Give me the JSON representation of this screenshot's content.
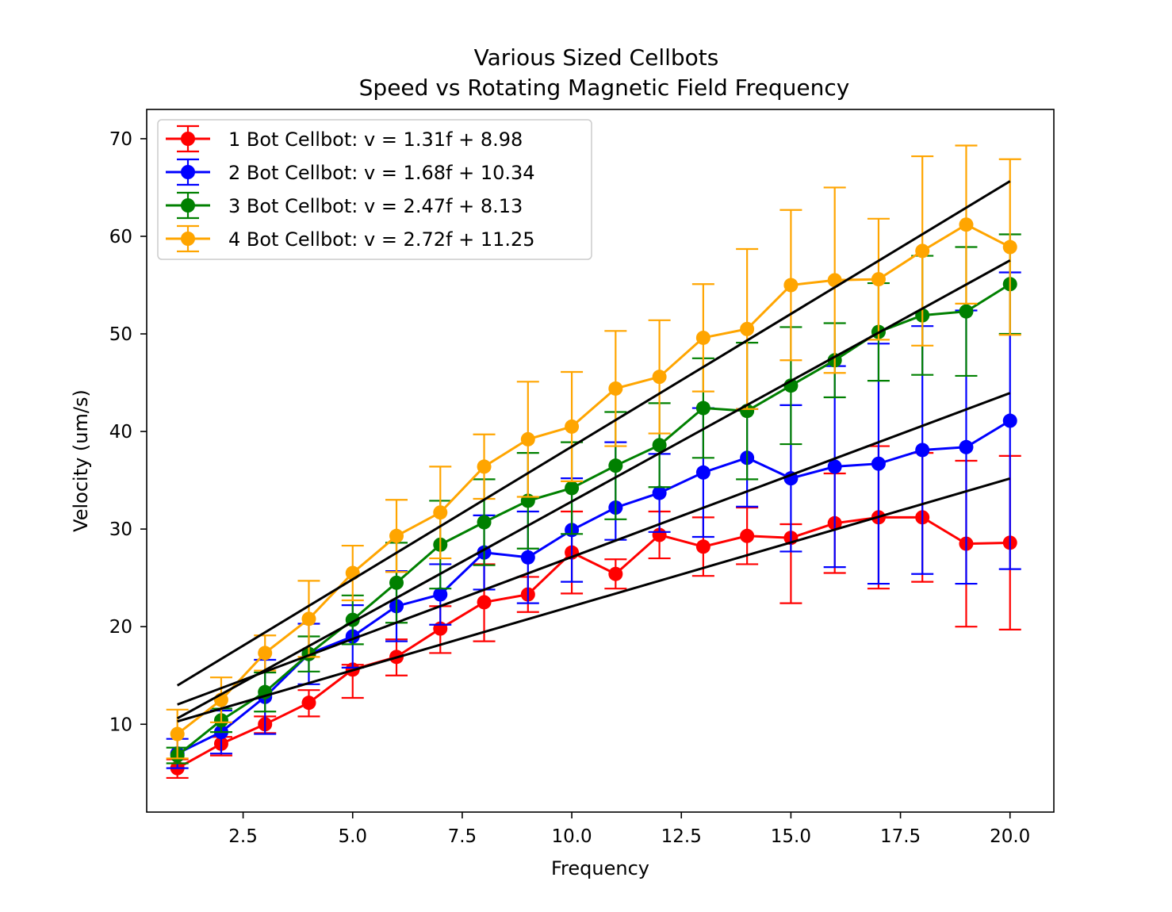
{
  "chart_data": {
    "type": "line",
    "title_line1": "Various Sized Cellbots",
    "title_line2": "Speed vs Rotating Magnetic Field Frequency",
    "xlabel": "Frequency",
    "ylabel": "Velocity (um/s)",
    "xlim": [
      0.3,
      21.0
    ],
    "ylim": [
      1.0,
      73.0
    ],
    "xticks": [
      2.5,
      5.0,
      7.5,
      10.0,
      12.5,
      15.0,
      17.5,
      20.0
    ],
    "xtick_labels": [
      "2.5",
      "5.0",
      "7.5",
      "10.0",
      "12.5",
      "15.0",
      "17.5",
      "20.0"
    ],
    "yticks": [
      10,
      20,
      30,
      40,
      50,
      60,
      70
    ],
    "ytick_labels": [
      "10",
      "20",
      "30",
      "40",
      "50",
      "60",
      "70"
    ],
    "grid": false,
    "legend_position": "top-left",
    "fit_line_color": "#000000",
    "x": [
      1,
      2,
      3,
      4,
      5,
      6,
      7,
      8,
      9,
      10,
      11,
      12,
      13,
      14,
      15,
      16,
      17,
      18,
      19,
      20
    ],
    "series": [
      {
        "name": "1 Bot Cellbot: v = 1.31f + 8.98",
        "color": "#ff0000",
        "slope": 1.31,
        "intercept": 8.98,
        "values": [
          5.5,
          8.0,
          10.0,
          12.2,
          15.6,
          16.9,
          19.8,
          22.5,
          23.3,
          27.6,
          25.4,
          29.4,
          28.2,
          29.3,
          29.1,
          30.6,
          31.2,
          31.2,
          28.5,
          28.6
        ],
        "err_low": [
          1.0,
          1.2,
          0.9,
          1.4,
          2.9,
          1.9,
          2.5,
          4.0,
          1.8,
          4.2,
          1.5,
          2.4,
          3.0,
          2.9,
          6.7,
          5.1,
          7.3,
          6.6,
          8.5,
          8.9
        ],
        "err_high": [
          0.9,
          0.7,
          0.8,
          1.3,
          0.5,
          1.8,
          2.3,
          3.9,
          1.8,
          4.2,
          1.5,
          2.4,
          3.0,
          2.9,
          1.4,
          5.1,
          7.3,
          6.6,
          8.5,
          8.9
        ]
      },
      {
        "name": "2 Bot Cellbot: v = 1.68f + 10.34",
        "color": "#0000ff",
        "slope": 1.68,
        "intercept": 10.34,
        "values": [
          7.0,
          9.2,
          12.8,
          17.2,
          19.0,
          22.1,
          23.3,
          27.6,
          27.1,
          29.9,
          32.2,
          33.7,
          35.8,
          37.3,
          35.2,
          36.4,
          36.7,
          38.1,
          38.4,
          41.1
        ],
        "err_low": [
          1.5,
          2.2,
          3.8,
          3.1,
          3.2,
          3.6,
          3.1,
          3.8,
          4.7,
          5.3,
          3.3,
          4.0,
          6.6,
          5.0,
          7.5,
          10.3,
          12.3,
          12.7,
          14.0,
          15.2
        ],
        "err_high": [
          1.5,
          2.2,
          3.8,
          3.1,
          3.2,
          3.6,
          3.1,
          3.8,
          4.7,
          5.3,
          6.7,
          4.0,
          6.6,
          5.0,
          7.5,
          10.3,
          12.3,
          12.7,
          14.0,
          15.2
        ]
      },
      {
        "name": "3 Bot Cellbot: v = 2.47f + 8.13",
        "color": "#008000",
        "slope": 2.47,
        "intercept": 8.13,
        "values": [
          6.8,
          10.4,
          13.3,
          17.2,
          20.7,
          24.5,
          28.4,
          30.7,
          32.9,
          34.2,
          36.5,
          38.6,
          42.4,
          42.1,
          44.7,
          47.3,
          50.2,
          51.9,
          52.3,
          55.1
        ],
        "err_low": [
          0.8,
          1.2,
          2.0,
          1.8,
          2.5,
          4.1,
          4.5,
          4.4,
          4.9,
          4.7,
          5.5,
          4.3,
          5.1,
          7.0,
          6.0,
          3.8,
          5.0,
          6.1,
          6.6,
          5.1
        ],
        "err_high": [
          0.8,
          1.2,
          2.0,
          1.8,
          2.5,
          4.1,
          4.5,
          4.4,
          4.9,
          4.7,
          5.5,
          4.3,
          5.1,
          7.0,
          6.0,
          3.8,
          5.0,
          6.1,
          6.6,
          5.1
        ]
      },
      {
        "name": "4 Bot Cellbot: v = 2.72f + 11.25",
        "color": "#ffa500",
        "slope": 2.72,
        "intercept": 11.25,
        "values": [
          9.0,
          12.5,
          17.3,
          20.8,
          25.5,
          29.3,
          31.7,
          36.4,
          39.2,
          40.5,
          44.4,
          45.6,
          49.6,
          50.5,
          55.0,
          55.5,
          55.6,
          58.5,
          61.2,
          58.9
        ],
        "err_low": [
          2.5,
          2.3,
          1.8,
          3.9,
          2.8,
          3.7,
          4.7,
          3.3,
          5.9,
          5.6,
          5.9,
          5.8,
          5.5,
          8.2,
          7.7,
          9.5,
          6.2,
          9.7,
          8.1,
          9.0
        ],
        "err_high": [
          2.5,
          2.3,
          1.8,
          3.9,
          2.8,
          3.7,
          4.7,
          3.3,
          5.9,
          5.6,
          5.9,
          5.8,
          5.5,
          8.2,
          7.7,
          9.5,
          6.2,
          9.7,
          8.1,
          9.0
        ]
      }
    ]
  }
}
